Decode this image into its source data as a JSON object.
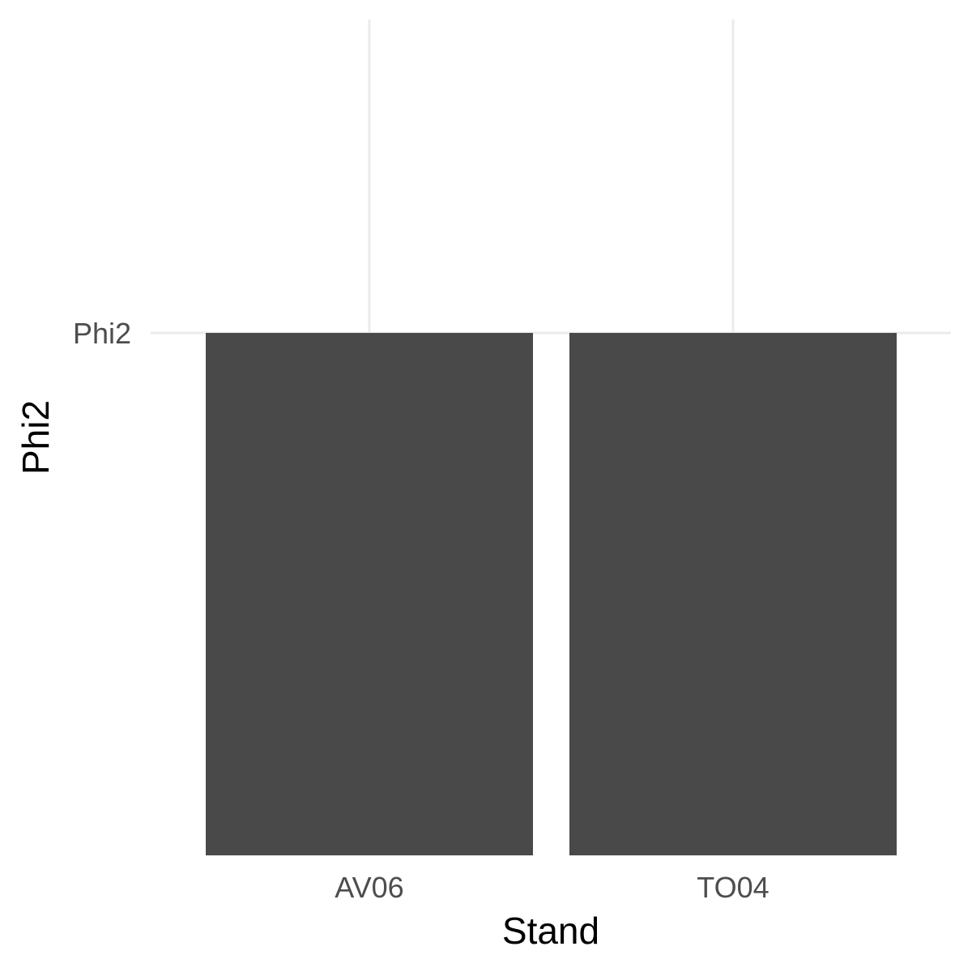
{
  "chart_data": {
    "type": "bar",
    "categories": [
      "AV06",
      "TO04"
    ],
    "values": [
      "Phi2",
      "Phi2"
    ],
    "y_tick_labels": [
      "Phi2"
    ],
    "xlabel": "Stand",
    "ylabel": "Phi2",
    "bar_color": "#494949",
    "grid_color": "#ebebeb",
    "grid": true,
    "legend": "none"
  }
}
